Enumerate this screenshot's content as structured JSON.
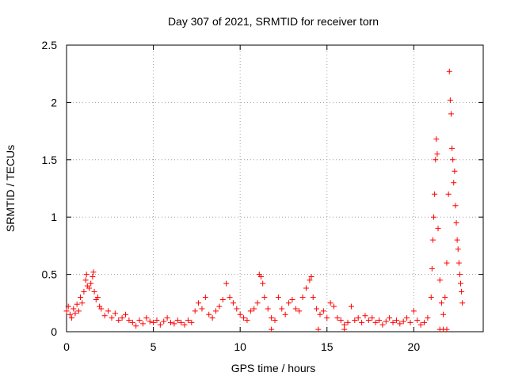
{
  "chart_data": {
    "type": "scatter",
    "title": "Day 307 of 2021, SRMTID for receiver torn",
    "xlabel": "GPS time / hours",
    "ylabel": "SRMTID / TECUs",
    "xlim": [
      0,
      24
    ],
    "ylim": [
      0,
      2.5
    ],
    "xticks": [
      0,
      5,
      10,
      15,
      20
    ],
    "yticks": [
      0,
      0.5,
      1,
      1.5,
      2,
      2.5
    ],
    "xtick_labels": [
      "0",
      "5",
      "10",
      "15",
      "20"
    ],
    "ytick_labels": [
      "0",
      "0.5",
      "1",
      "1.5",
      "2",
      "2.5"
    ],
    "grid": true,
    "marker": "+",
    "series": [
      {
        "name": "SRMTID",
        "color": "#ff0000",
        "x": [
          0.0,
          0.1,
          0.2,
          0.3,
          0.4,
          0.5,
          0.6,
          0.7,
          0.8,
          0.9,
          1.0,
          1.1,
          1.15,
          1.2,
          1.3,
          1.4,
          1.5,
          1.55,
          1.6,
          1.7,
          1.8,
          1.9,
          2.0,
          2.2,
          2.4,
          2.6,
          2.8,
          3.0,
          3.2,
          3.4,
          3.6,
          3.8,
          4.0,
          4.2,
          4.4,
          4.6,
          4.8,
          5.0,
          5.2,
          5.4,
          5.6,
          5.8,
          6.0,
          6.2,
          6.4,
          6.6,
          6.8,
          7.0,
          7.2,
          7.4,
          7.6,
          7.8,
          8.0,
          8.2,
          8.4,
          8.6,
          8.8,
          9.0,
          9.2,
          9.4,
          9.6,
          9.8,
          10.0,
          10.2,
          10.4,
          10.6,
          10.8,
          11.0,
          11.1,
          11.2,
          11.3,
          11.4,
          11.6,
          11.8,
          12.0,
          12.2,
          12.4,
          12.6,
          12.8,
          13.0,
          13.2,
          13.4,
          13.6,
          13.8,
          14.0,
          14.1,
          14.2,
          14.4,
          14.6,
          14.8,
          15.0,
          15.2,
          15.4,
          15.6,
          15.8,
          16.0,
          16.2,
          16.4,
          16.6,
          16.8,
          17.0,
          17.2,
          17.4,
          17.6,
          17.8,
          18.0,
          18.2,
          18.4,
          18.6,
          18.8,
          19.0,
          19.2,
          19.4,
          19.6,
          19.8,
          20.0,
          20.2,
          20.4,
          20.6,
          20.8,
          21.0,
          21.05,
          21.1,
          21.15,
          21.2,
          21.25,
          21.3,
          21.35,
          21.4,
          21.5,
          21.6,
          21.7,
          21.8,
          21.9,
          22.0,
          22.05,
          22.1,
          22.15,
          22.2,
          22.25,
          22.3,
          22.35,
          22.4,
          22.45,
          22.5,
          22.55,
          22.6,
          22.65,
          22.7,
          22.75,
          22.8,
          11.8,
          14.5,
          16.0,
          21.5,
          21.7,
          21.9
        ],
        "y": [
          0.18,
          0.22,
          0.15,
          0.12,
          0.2,
          0.16,
          0.24,
          0.18,
          0.3,
          0.25,
          0.35,
          0.45,
          0.5,
          0.4,
          0.38,
          0.42,
          0.48,
          0.52,
          0.35,
          0.28,
          0.3,
          0.22,
          0.2,
          0.14,
          0.18,
          0.12,
          0.16,
          0.1,
          0.12,
          0.15,
          0.1,
          0.08,
          0.05,
          0.1,
          0.07,
          0.12,
          0.09,
          0.08,
          0.1,
          0.06,
          0.09,
          0.12,
          0.08,
          0.07,
          0.1,
          0.08,
          0.06,
          0.1,
          0.08,
          0.18,
          0.25,
          0.2,
          0.3,
          0.15,
          0.12,
          0.18,
          0.22,
          0.28,
          0.42,
          0.3,
          0.25,
          0.2,
          0.15,
          0.12,
          0.1,
          0.18,
          0.2,
          0.25,
          0.5,
          0.48,
          0.42,
          0.3,
          0.2,
          0.12,
          0.1,
          0.3,
          0.2,
          0.15,
          0.25,
          0.28,
          0.2,
          0.18,
          0.3,
          0.38,
          0.45,
          0.48,
          0.3,
          0.2,
          0.15,
          0.18,
          0.12,
          0.25,
          0.22,
          0.12,
          0.1,
          0.06,
          0.08,
          0.22,
          0.1,
          0.12,
          0.08,
          0.14,
          0.1,
          0.12,
          0.08,
          0.1,
          0.06,
          0.09,
          0.12,
          0.08,
          0.1,
          0.07,
          0.09,
          0.12,
          0.08,
          0.18,
          0.1,
          0.06,
          0.08,
          0.12,
          0.3,
          0.55,
          0.8,
          1.0,
          1.2,
          1.5,
          1.68,
          1.55,
          0.9,
          0.45,
          0.25,
          0.15,
          0.3,
          0.6,
          1.2,
          2.27,
          2.02,
          1.9,
          1.6,
          1.5,
          1.3,
          1.4,
          1.1,
          0.95,
          0.8,
          0.72,
          0.6,
          0.5,
          0.42,
          0.35,
          0.25,
          0.02,
          0.02,
          0.02,
          0.02,
          0.02,
          0.02
        ]
      }
    ]
  }
}
